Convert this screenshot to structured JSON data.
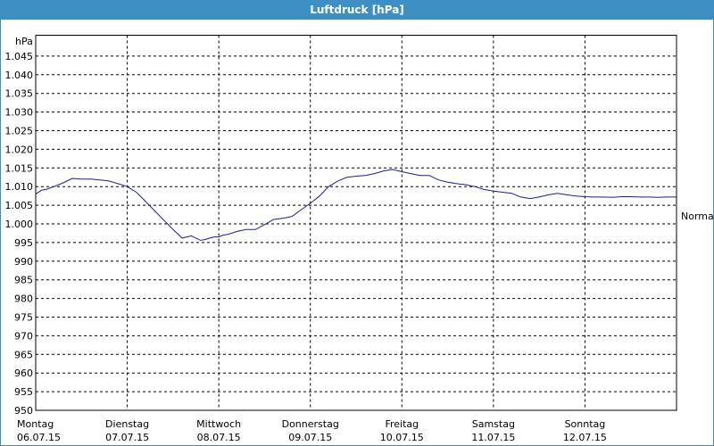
{
  "window": {
    "title": "Luftdruck [hPa]"
  },
  "chart_data": {
    "type": "line",
    "title": "Luftdruck [hPa]",
    "ylabel": "hPa",
    "ylim": [
      950,
      1050
    ],
    "yticks": [
      "950",
      "955",
      "960",
      "965",
      "970",
      "975",
      "980",
      "985",
      "990",
      "995",
      "1.000",
      "1.005",
      "1.010",
      "1.015",
      "1.020",
      "1.025",
      "1.030",
      "1.035",
      "1.040",
      "1.045"
    ],
    "ytick_values": [
      950,
      955,
      960,
      965,
      970,
      975,
      980,
      985,
      990,
      995,
      1000,
      1005,
      1010,
      1015,
      1020,
      1025,
      1030,
      1035,
      1040,
      1045
    ],
    "xlim": [
      0,
      7
    ],
    "x_categories": [
      {
        "day": "Montag",
        "date": "06.07.15",
        "pos": 0
      },
      {
        "day": "Dienstag",
        "date": "07.07.15",
        "pos": 1
      },
      {
        "day": "Mittwoch",
        "date": "08.07.15",
        "pos": 2
      },
      {
        "day": "Donnerstag",
        "date": "09.07.15",
        "pos": 3
      },
      {
        "day": "Freitag",
        "date": "10.07.15",
        "pos": 4
      },
      {
        "day": "Samstag",
        "date": "11.07.15",
        "pos": 5
      },
      {
        "day": "Sonntag",
        "date": "12.07.15",
        "pos": 6
      }
    ],
    "grid": true,
    "reference_label": "Normal",
    "reference_value": 1002.2,
    "series": [
      {
        "color": "#1a1aa6",
        "x": [
          0,
          0.06,
          0.12,
          0.2,
          0.3,
          0.4,
          0.5,
          0.6,
          0.7,
          0.8,
          0.9,
          1.0,
          1.1,
          1.2,
          1.3,
          1.4,
          1.5,
          1.6,
          1.7,
          1.8,
          1.85,
          1.9,
          1.95,
          2.0,
          2.05,
          2.1,
          2.2,
          2.3,
          2.4,
          2.5,
          2.6,
          2.7,
          2.8,
          2.9,
          3.0,
          3.1,
          3.2,
          3.3,
          3.4,
          3.5,
          3.6,
          3.7,
          3.8,
          3.9,
          4.0,
          4.1,
          4.2,
          4.3,
          4.4,
          4.5,
          4.6,
          4.7,
          4.8,
          4.9,
          5.0,
          5.1,
          5.2,
          5.3,
          5.4,
          5.5,
          5.6,
          5.7,
          5.8,
          5.9,
          6.0,
          6.1,
          6.2,
          6.3,
          6.4,
          6.5,
          6.6,
          6.7,
          6.8,
          6.9,
          7.0
        ],
        "y": [
          1008,
          1009,
          1009.3,
          1010,
          1011,
          1012.2,
          1012,
          1012,
          1011.8,
          1011.5,
          1010.8,
          1010,
          1008.5,
          1006,
          1003.5,
          1001,
          998.5,
          996.2,
          996.8,
          995.6,
          995.8,
          996.2,
          996.5,
          996.5,
          997,
          997.2,
          998,
          998.5,
          998.5,
          999.8,
          1001.2,
          1001.5,
          1002,
          1003.8,
          1005.5,
          1007.5,
          1010,
          1011.5,
          1012.5,
          1012.8,
          1013,
          1013.5,
          1014.2,
          1014.6,
          1014,
          1013.5,
          1013,
          1013,
          1011.8,
          1011.2,
          1010.8,
          1010.5,
          1010,
          1009.2,
          1008.8,
          1008.5,
          1008.2,
          1007.2,
          1006.8,
          1007.2,
          1007.8,
          1008.2,
          1007.8,
          1007.5,
          1007.3,
          1007.2,
          1007.2,
          1007.1,
          1007.3,
          1007.3,
          1007.2,
          1007.2,
          1007.1,
          1007.2,
          1007.2
        ]
      }
    ]
  }
}
